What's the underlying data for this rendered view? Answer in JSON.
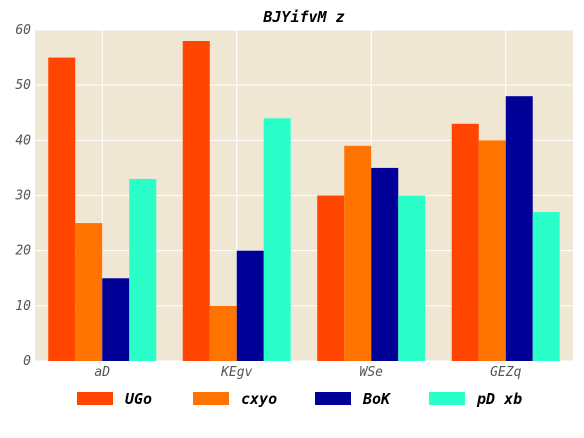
{
  "chart_data": {
    "type": "bar",
    "title": "BJYifvM z",
    "xlabel": "",
    "ylabel": "",
    "categories": [
      "aD",
      "KEgv",
      "WSe",
      "GEZq"
    ],
    "ylim": [
      0,
      60
    ],
    "yticks": [
      0,
      10,
      20,
      30,
      40,
      50,
      60
    ],
    "grid": true,
    "legend_position": "bottom",
    "background": "#efe6d4",
    "series": [
      {
        "name": "UGo",
        "color": "#ff4500",
        "values": [
          55,
          58,
          30,
          43
        ]
      },
      {
        "name": "cxyo",
        "color": "#ff7400",
        "values": [
          25,
          10,
          39,
          40
        ]
      },
      {
        "name": "BoK",
        "color": "#000096",
        "values": [
          15,
          20,
          35,
          48
        ]
      },
      {
        "name": "pD xb",
        "color": "#2affca",
        "values": [
          33,
          44,
          30,
          27
        ]
      }
    ]
  }
}
